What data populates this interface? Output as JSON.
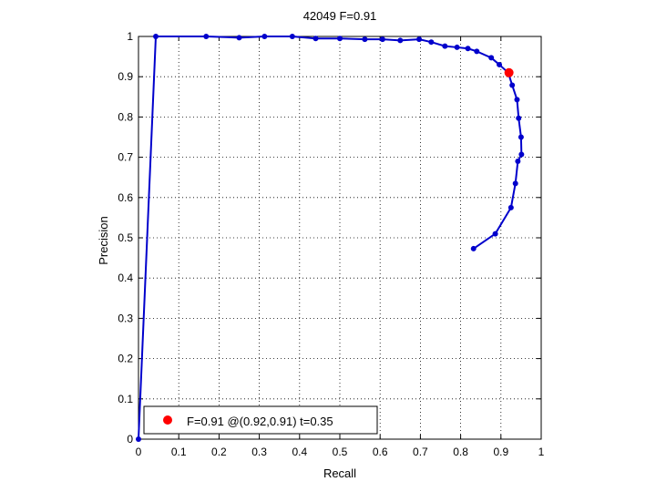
{
  "chart_data": {
    "type": "line",
    "title": "42049 F=0.91",
    "xlabel": "Recall",
    "ylabel": "Precision",
    "xlim": [
      0,
      1
    ],
    "ylim": [
      0,
      1
    ],
    "grid": true,
    "legend_position": "bottom-left",
    "x_ticks": [
      "0",
      "0.1",
      "0.2",
      "0.3",
      "0.4",
      "0.5",
      "0.6",
      "0.7",
      "0.8",
      "0.9",
      "1"
    ],
    "y_ticks": [
      "0",
      "0.1",
      "0.2",
      "0.3",
      "0.4",
      "0.5",
      "0.6",
      "0.7",
      "0.8",
      "0.9",
      "1"
    ],
    "series": [
      {
        "color": "#0000cc",
        "marker": "dot",
        "points": [
          [
            0,
            0
          ],
          [
            0.043,
            1.0
          ],
          [
            0.168,
            1.0
          ],
          [
            0.25,
            0.997
          ],
          [
            0.313,
            1.0
          ],
          [
            0.382,
            1.0
          ],
          [
            0.44,
            0.995
          ],
          [
            0.5,
            0.995
          ],
          [
            0.562,
            0.993
          ],
          [
            0.606,
            0.993
          ],
          [
            0.65,
            0.99
          ],
          [
            0.697,
            0.993
          ],
          [
            0.727,
            0.986
          ],
          [
            0.761,
            0.976
          ],
          [
            0.791,
            0.973
          ],
          [
            0.818,
            0.97
          ],
          [
            0.84,
            0.963
          ],
          [
            0.876,
            0.947
          ],
          [
            0.896,
            0.93
          ],
          [
            0.918,
            0.91
          ],
          [
            0.928,
            0.879
          ],
          [
            0.94,
            0.843
          ],
          [
            0.944,
            0.797
          ],
          [
            0.95,
            0.75
          ],
          [
            0.951,
            0.707
          ],
          [
            0.942,
            0.69
          ],
          [
            0.936,
            0.635
          ],
          [
            0.925,
            0.575
          ],
          [
            0.886,
            0.51
          ],
          [
            0.832,
            0.473
          ]
        ]
      }
    ],
    "best_point": {
      "recall": 0.92,
      "precision": 0.91,
      "color": "#ff0000"
    },
    "legend": {
      "label": "F=0.91 @(0.92,0.91) t=0.35",
      "color": "#ff0000"
    }
  }
}
